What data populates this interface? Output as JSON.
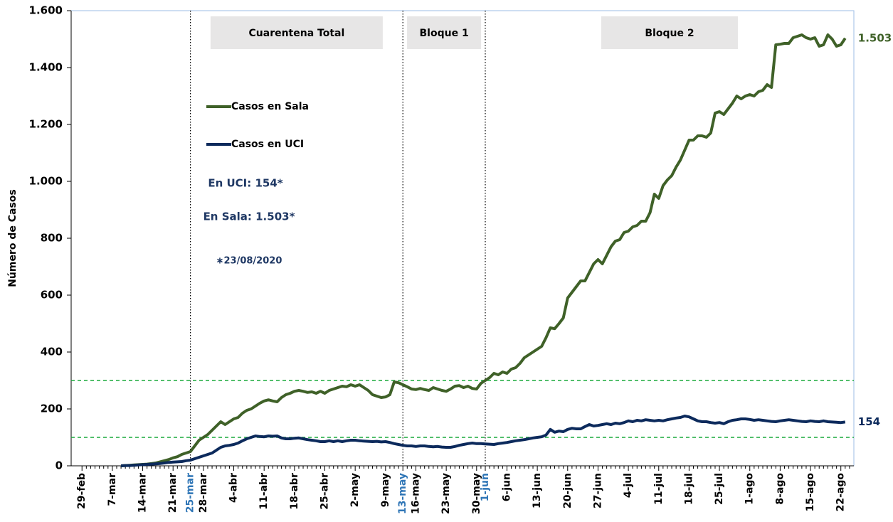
{
  "chart_data": {
    "type": "line",
    "y_label": "Número de Casos",
    "categories": [
      "29-feb",
      null,
      null,
      null,
      null,
      null,
      null,
      "7-mar",
      null,
      null,
      null,
      null,
      null,
      null,
      "14-mar",
      null,
      null,
      null,
      null,
      null,
      null,
      "21-mar",
      null,
      null,
      null,
      "25-mar",
      null,
      null,
      "28-mar",
      null,
      null,
      null,
      null,
      null,
      null,
      "4-abr",
      null,
      null,
      null,
      null,
      null,
      null,
      "11-abr",
      null,
      null,
      null,
      null,
      null,
      null,
      "18-abr",
      null,
      null,
      null,
      null,
      null,
      null,
      "25-abr",
      null,
      null,
      null,
      null,
      null,
      null,
      "2-may",
      null,
      null,
      null,
      null,
      null,
      null,
      "9-may",
      null,
      null,
      null,
      "13-may",
      null,
      null,
      "16-may",
      null,
      null,
      null,
      null,
      null,
      null,
      "23-may",
      null,
      null,
      null,
      null,
      null,
      null,
      "30-may",
      null,
      "1-jun",
      null,
      null,
      null,
      null,
      "6-jun",
      null,
      null,
      null,
      null,
      null,
      null,
      "13-jun",
      null,
      null,
      null,
      null,
      null,
      null,
      "20-jun",
      null,
      null,
      null,
      null,
      null,
      null,
      "27-jun",
      null,
      null,
      null,
      null,
      null,
      null,
      "4-jul",
      null,
      null,
      null,
      null,
      null,
      null,
      "11-jul",
      null,
      null,
      null,
      null,
      null,
      null,
      "18-jul",
      null,
      null,
      null,
      null,
      null,
      null,
      "25-jul",
      null,
      null,
      null,
      null,
      null,
      null,
      "1-ago",
      null,
      null,
      null,
      null,
      null,
      null,
      "8-ago",
      null,
      null,
      null,
      null,
      null,
      null,
      "15-ago",
      null,
      null,
      null,
      null,
      null,
      null,
      "22-ago",
      null,
      null
    ],
    "series": [
      {
        "name": "Casos en Sala",
        "color": "#3f6128",
        "end_label": "1.503",
        "values": [
          null,
          null,
          null,
          null,
          null,
          null,
          null,
          null,
          null,
          0,
          1,
          2,
          3,
          4,
          5,
          6,
          8,
          10,
          14,
          18,
          22,
          28,
          32,
          40,
          45,
          50,
          70,
          90,
          100,
          110,
          125,
          140,
          155,
          145,
          155,
          165,
          170,
          185,
          195,
          200,
          210,
          220,
          228,
          232,
          228,
          225,
          240,
          250,
          255,
          262,
          265,
          262,
          258,
          260,
          255,
          262,
          255,
          265,
          270,
          275,
          280,
          278,
          285,
          280,
          285,
          275,
          265,
          250,
          245,
          240,
          242,
          250,
          295,
          292,
          285,
          278,
          270,
          268,
          272,
          268,
          265,
          275,
          270,
          265,
          262,
          270,
          280,
          282,
          275,
          280,
          272,
          270,
          290,
          300,
          310,
          325,
          320,
          330,
          325,
          340,
          345,
          360,
          380,
          390,
          400,
          410,
          420,
          450,
          485,
          482,
          500,
          520,
          590,
          610,
          630,
          650,
          650,
          680,
          710,
          725,
          710,
          740,
          770,
          790,
          795,
          820,
          825,
          840,
          845,
          860,
          860,
          890,
          955,
          940,
          985,
          1005,
          1020,
          1050,
          1075,
          1110,
          1145,
          1145,
          1160,
          1160,
          1155,
          1170,
          1240,
          1245,
          1235,
          1255,
          1275,
          1300,
          1290,
          1300,
          1305,
          1300,
          1315,
          1320,
          1340,
          1330,
          1480,
          1482,
          1485,
          1485,
          1505,
          1510,
          1515,
          1505,
          1500,
          1505,
          1475,
          1480,
          1515,
          1500,
          1475,
          1480,
          1503,
          null
        ]
      },
      {
        "name": "Casos en UCI",
        "color": "#0c2a5c",
        "end_label": "154",
        "values": [
          null,
          null,
          null,
          null,
          null,
          null,
          null,
          null,
          null,
          0,
          1,
          1,
          2,
          3,
          4,
          5,
          6,
          7,
          8,
          10,
          12,
          13,
          14,
          15,
          18,
          20,
          25,
          30,
          35,
          40,
          45,
          55,
          65,
          70,
          72,
          75,
          80,
          88,
          95,
          100,
          105,
          103,
          102,
          105,
          104,
          105,
          98,
          95,
          95,
          97,
          98,
          95,
          92,
          90,
          88,
          85,
          85,
          88,
          85,
          88,
          85,
          88,
          90,
          90,
          88,
          87,
          86,
          85,
          86,
          84,
          85,
          82,
          78,
          75,
          72,
          70,
          70,
          68,
          70,
          70,
          68,
          67,
          68,
          66,
          65,
          65,
          68,
          72,
          75,
          78,
          80,
          78,
          78,
          77,
          76,
          75,
          78,
          80,
          82,
          85,
          88,
          90,
          92,
          95,
          98,
          100,
          102,
          108,
          128,
          118,
          122,
          120,
          128,
          132,
          130,
          130,
          138,
          145,
          140,
          142,
          145,
          148,
          145,
          150,
          148,
          152,
          158,
          155,
          160,
          158,
          162,
          160,
          158,
          160,
          158,
          162,
          165,
          168,
          170,
          175,
          172,
          165,
          158,
          155,
          155,
          152,
          150,
          152,
          148,
          155,
          160,
          162,
          165,
          165,
          163,
          160,
          162,
          160,
          158,
          156,
          155,
          158,
          160,
          162,
          160,
          158,
          156,
          155,
          158,
          156,
          155,
          158,
          155,
          154,
          153,
          152,
          154,
          null
        ]
      }
    ],
    "ylim": [
      0,
      1600
    ],
    "yticks": [
      0,
      200,
      400,
      600,
      800,
      {
        "value": 1000,
        "label": "1.000"
      },
      {
        "value": 1200,
        "label": "1.200"
      },
      {
        "value": 1400,
        "label": "1.400"
      },
      {
        "value": 1600,
        "label": "1.600"
      }
    ],
    "reference_lines": [
      300,
      100
    ],
    "reference_color": "#1aaa3c",
    "vertical_lines": [
      "25-mar",
      "13-may",
      "1-jun"
    ],
    "highlight_color": "#2e75b6",
    "phases": [
      "Cuarentena Total",
      "Bloque 1",
      "Bloque 2"
    ],
    "annotations": [
      "En UCI: 154*",
      "En Sala: 1.503*",
      "∗23/08/2020"
    ],
    "legend": "upper left"
  }
}
